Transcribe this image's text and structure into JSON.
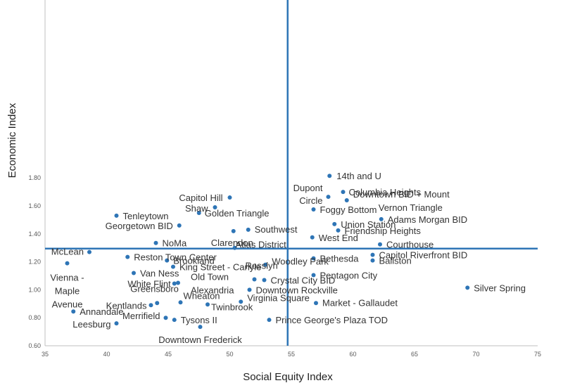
{
  "chart_data": {
    "type": "scatter",
    "title": "",
    "xlabel": "Social Equity Index",
    "ylabel": "Economic Index",
    "xlim": [
      35,
      75
    ],
    "ylim": [
      0.6,
      1.85
    ],
    "x_ticks": [
      "35",
      "40",
      "45",
      "50",
      "55",
      "60",
      "65",
      "70",
      "75"
    ],
    "y_ticks": [
      "0.60",
      "0.80",
      "1.00",
      "1.20",
      "1.40",
      "1.60",
      "1.80"
    ],
    "grid": false,
    "reference_lines": {
      "x": 54.7,
      "y": 1.295
    },
    "colors": {
      "point": "#2e75b6",
      "reference_line": "#2e75b6"
    },
    "points": [
      {
        "label": "14th and U",
        "x": 58.1,
        "y": 1.815
      },
      {
        "label": "Columbia Heights",
        "x": 59.2,
        "y": 1.7
      },
      {
        "label": "Dupont Circle",
        "x": 58.0,
        "y": 1.665
      },
      {
        "label": "Downtown BID + Mount Vernon Triangle",
        "x": 59.5,
        "y": 1.64
      },
      {
        "label": "Capitol Hill",
        "x": 50.0,
        "y": 1.66
      },
      {
        "label": "Shaw",
        "x": 48.8,
        "y": 1.59
      },
      {
        "label": "Golden Triangle",
        "x": 47.5,
        "y": 1.55
      },
      {
        "label": "Foggy Bottom",
        "x": 56.8,
        "y": 1.575
      },
      {
        "label": "Tenleytown",
        "x": 40.8,
        "y": 1.53
      },
      {
        "label": "Adams Morgan BID",
        "x": 62.3,
        "y": 1.505
      },
      {
        "label": "Union Station",
        "x": 58.5,
        "y": 1.47
      },
      {
        "label": "Georgetown BID",
        "x": 45.9,
        "y": 1.46
      },
      {
        "label": "Southwest",
        "x": 51.5,
        "y": 1.43
      },
      {
        "label": "Clarendon",
        "x": 50.3,
        "y": 1.42
      },
      {
        "label": "Friendship Heights",
        "x": 58.8,
        "y": 1.425
      },
      {
        "label": "West End",
        "x": 56.7,
        "y": 1.375
      },
      {
        "label": "NoMa",
        "x": 44.0,
        "y": 1.335
      },
      {
        "label": "Courthouse",
        "x": 62.2,
        "y": 1.325
      },
      {
        "label": "Atlas District",
        "x": 50.4,
        "y": 1.3
      },
      {
        "label": "McLean",
        "x": 38.6,
        "y": 1.27
      },
      {
        "label": "Capitol Riverfront BID",
        "x": 61.6,
        "y": 1.25
      },
      {
        "label": "Reston Town Center",
        "x": 41.7,
        "y": 1.235
      },
      {
        "label": "Bethesda",
        "x": 56.8,
        "y": 1.225
      },
      {
        "label": "Brookland",
        "x": 44.9,
        "y": 1.21
      },
      {
        "label": "Ballston",
        "x": 61.6,
        "y": 1.21
      },
      {
        "label": "Vienna - Maple Avenue",
        "x": 36.8,
        "y": 1.19
      },
      {
        "label": "Woodley Park",
        "x": 52.9,
        "y": 1.18
      },
      {
        "label": "King Street - Carlyle",
        "x": 45.4,
        "y": 1.165
      },
      {
        "label": "Van Ness",
        "x": 42.2,
        "y": 1.12
      },
      {
        "label": "Pentagon City",
        "x": 56.8,
        "y": 1.105
      },
      {
        "label": "Rosslyn",
        "x": 52.0,
        "y": 1.075
      },
      {
        "label": "Crystal City BID",
        "x": 52.8,
        "y": 1.07
      },
      {
        "label": "Old Town Alexandria",
        "x": 45.8,
        "y": 1.05
      },
      {
        "label": "White Flint",
        "x": 45.5,
        "y": 1.045
      },
      {
        "label": "Silver Spring",
        "x": 69.3,
        "y": 1.015
      },
      {
        "label": "Downtown Rockville",
        "x": 51.6,
        "y": 1.0
      },
      {
        "label": "Virginia Square",
        "x": 50.9,
        "y": 0.915
      },
      {
        "label": "Wheaton",
        "x": 46.0,
        "y": 0.91
      },
      {
        "label": "Greensboro",
        "x": 44.1,
        "y": 0.905
      },
      {
        "label": "Market - Gallaudet",
        "x": 57.0,
        "y": 0.905
      },
      {
        "label": "Twinbrook",
        "x": 48.2,
        "y": 0.895
      },
      {
        "label": "Kentlands",
        "x": 43.6,
        "y": 0.89
      },
      {
        "label": "Annandale",
        "x": 37.3,
        "y": 0.845
      },
      {
        "label": "Merrifield",
        "x": 44.8,
        "y": 0.8
      },
      {
        "label": "Tysons II",
        "x": 45.5,
        "y": 0.785
      },
      {
        "label": "Prince George's Plaza TOD",
        "x": 53.2,
        "y": 0.785
      },
      {
        "label": "Leesburg",
        "x": 40.8,
        "y": 0.76
      },
      {
        "label": "Downtown Frederick",
        "x": 47.6,
        "y": 0.735
      }
    ]
  }
}
